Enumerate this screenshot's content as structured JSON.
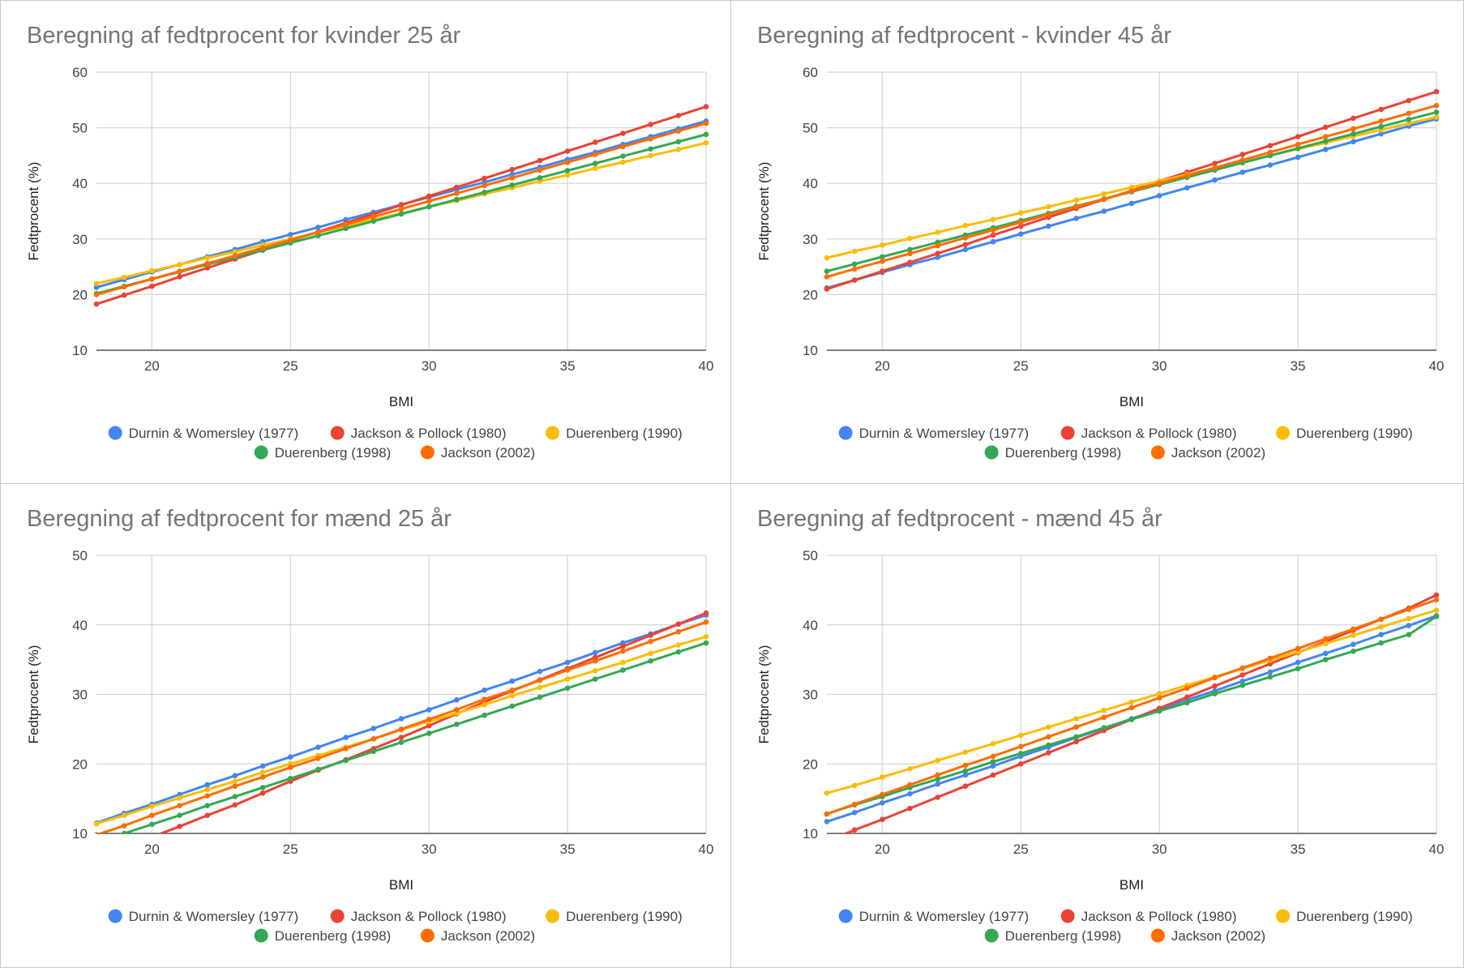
{
  "colors": {
    "durnin": "#4285f4",
    "jacksonPollock": "#ea4335",
    "duerenberg1990": "#fbbc04",
    "duerenberg1998": "#34a853",
    "jackson2002": "#ff6d01"
  },
  "chart_data": [
    {
      "type": "line",
      "title": "Beregning af fedtprocent for kvinder 25 år",
      "xlabel": "BMI",
      "ylabel": "Fedtprocent (%)",
      "xlim": [
        18,
        40
      ],
      "ylim": [
        10,
        60
      ],
      "xticks": [
        20,
        25,
        30,
        35,
        40
      ],
      "yticks": [
        10,
        20,
        30,
        40,
        50,
        60
      ],
      "grid": true,
      "legend_position": "bottom",
      "x": [
        18,
        19,
        20,
        21,
        22,
        23,
        24,
        25,
        26,
        27,
        28,
        29,
        30,
        31,
        32,
        33,
        34,
        35,
        36,
        37,
        38,
        39,
        40
      ],
      "series": [
        {
          "name": "Durnin & Womersley (1977)",
          "color": "#4285f4",
          "values": [
            21.3,
            22.7,
            24.1,
            25.4,
            26.8,
            28.1,
            29.5,
            30.8,
            32.1,
            33.5,
            34.8,
            36.2,
            37.5,
            38.9,
            40.2,
            41.6,
            42.9,
            44.3,
            45.6,
            47.0,
            48.4,
            49.8,
            51.2
          ]
        },
        {
          "name": "Jackson & Pollock (1980)",
          "color": "#ea4335",
          "values": [
            18.3,
            19.9,
            21.5,
            23.2,
            24.8,
            26.4,
            28.0,
            29.7,
            31.3,
            32.9,
            34.5,
            36.1,
            37.7,
            39.3,
            40.9,
            42.5,
            44.1,
            45.8,
            47.4,
            49.0,
            50.6,
            52.2,
            53.8
          ]
        },
        {
          "name": "Duerenberg (1990)",
          "color": "#fbbc04",
          "values": [
            22.0,
            23.1,
            24.3,
            25.4,
            26.6,
            27.7,
            28.9,
            30.0,
            31.2,
            32.3,
            33.5,
            34.6,
            35.8,
            36.9,
            38.1,
            39.2,
            40.4,
            41.5,
            42.7,
            43.8,
            45.0,
            46.1,
            47.3
          ]
        },
        {
          "name": "Duerenberg (1998)",
          "color": "#34a853",
          "values": [
            20.2,
            21.5,
            22.8,
            24.1,
            25.4,
            26.7,
            28.0,
            29.3,
            30.6,
            31.9,
            33.2,
            34.5,
            35.8,
            37.1,
            38.4,
            39.7,
            41.0,
            42.3,
            43.6,
            44.9,
            46.2,
            47.5,
            48.8
          ]
        },
        {
          "name": "Jackson (2002)",
          "color": "#ff6d01",
          "values": [
            20.0,
            21.4,
            22.8,
            24.2,
            25.6,
            27.0,
            28.4,
            29.8,
            31.2,
            32.6,
            34.0,
            35.4,
            36.8,
            38.2,
            39.6,
            41.0,
            42.4,
            43.8,
            45.2,
            46.6,
            48.0,
            49.4,
            50.8
          ]
        }
      ]
    },
    {
      "type": "line",
      "title": "Beregning af fedtprocent - kvinder 45 år",
      "xlabel": "BMI",
      "ylabel": "Fedtprocent (%)",
      "xlim": [
        18,
        40
      ],
      "ylim": [
        10,
        60
      ],
      "xticks": [
        20,
        25,
        30,
        35,
        40
      ],
      "yticks": [
        10,
        20,
        30,
        40,
        50,
        60
      ],
      "grid": true,
      "legend_position": "bottom",
      "x": [
        18,
        19,
        20,
        21,
        22,
        23,
        24,
        25,
        26,
        27,
        28,
        29,
        30,
        31,
        32,
        33,
        34,
        35,
        36,
        37,
        38,
        39,
        40
      ],
      "series": [
        {
          "name": "Durnin & Womersley (1977)",
          "color": "#4285f4",
          "values": [
            21.2,
            22.6,
            24.0,
            25.4,
            26.7,
            28.1,
            29.5,
            30.9,
            32.3,
            33.7,
            35.0,
            36.4,
            37.8,
            39.2,
            40.6,
            42.0,
            43.3,
            44.7,
            46.1,
            47.5,
            48.9,
            50.3,
            51.6
          ]
        },
        {
          "name": "Jackson & Pollock (1980)",
          "color": "#ea4335",
          "values": [
            21.0,
            22.6,
            24.2,
            25.8,
            27.4,
            29.0,
            30.7,
            32.3,
            33.9,
            35.5,
            37.1,
            38.7,
            40.4,
            42.0,
            43.6,
            45.2,
            46.8,
            48.4,
            50.1,
            51.7,
            53.3,
            54.9,
            56.5
          ]
        },
        {
          "name": "Duerenberg (1990)",
          "color": "#fbbc04",
          "values": [
            26.6,
            27.8,
            28.9,
            30.1,
            31.2,
            32.4,
            33.5,
            34.7,
            35.8,
            37.0,
            38.1,
            39.3,
            40.4,
            41.6,
            42.7,
            43.9,
            45.0,
            46.2,
            47.3,
            48.5,
            49.6,
            50.8,
            51.9
          ]
        },
        {
          "name": "Duerenberg (1998)",
          "color": "#34a853",
          "values": [
            24.2,
            25.5,
            26.8,
            28.1,
            29.4,
            30.7,
            32.0,
            33.3,
            34.6,
            35.9,
            37.2,
            38.5,
            39.8,
            41.1,
            42.4,
            43.7,
            45.0,
            46.3,
            47.6,
            48.9,
            50.2,
            51.5,
            52.8
          ]
        },
        {
          "name": "Jackson (2002)",
          "color": "#ff6d01",
          "values": [
            23.2,
            24.6,
            26.0,
            27.4,
            28.8,
            30.2,
            31.6,
            33.0,
            34.4,
            35.8,
            37.2,
            38.6,
            40.0,
            41.4,
            42.8,
            44.2,
            45.6,
            47.0,
            48.4,
            49.8,
            51.2,
            52.6,
            54.0
          ]
        }
      ]
    },
    {
      "type": "line",
      "title": "Beregning af fedtprocent for mænd 25 år",
      "xlabel": "BMI",
      "ylabel": "Fedtprocent (%)",
      "xlim": [
        18,
        40
      ],
      "ylim": [
        10,
        50
      ],
      "xticks": [
        20,
        25,
        30,
        35,
        40
      ],
      "yticks": [
        10,
        20,
        30,
        40,
        50
      ],
      "grid": true,
      "legend_position": "bottom",
      "x": [
        18,
        19,
        20,
        21,
        22,
        23,
        24,
        25,
        26,
        27,
        28,
        29,
        30,
        31,
        32,
        33,
        34,
        35,
        36,
        37,
        38,
        39,
        40
      ],
      "series": [
        {
          "name": "Durnin & Womersley (1977)",
          "color": "#4285f4",
          "values": [
            11.5,
            12.9,
            14.2,
            15.6,
            17.0,
            18.3,
            19.7,
            21.0,
            22.4,
            23.8,
            25.1,
            26.5,
            27.8,
            29.2,
            30.6,
            31.9,
            33.3,
            34.6,
            36.0,
            37.4,
            38.7,
            40.1,
            41.4
          ]
        },
        {
          "name": "Jackson & Pollock (1980)",
          "color": "#ea4335",
          "values": [
            6.5,
            8.0,
            9.5,
            11.0,
            12.6,
            14.1,
            15.8,
            17.5,
            19.1,
            20.6,
            22.2,
            23.8,
            25.5,
            27.2,
            28.9,
            30.5,
            32.1,
            33.7,
            35.3,
            36.9,
            38.5,
            40.1,
            41.7
          ]
        },
        {
          "name": "Duerenberg (1990)",
          "color": "#fbbc04",
          "values": [
            11.4,
            12.6,
            13.9,
            15.1,
            16.3,
            17.5,
            18.8,
            20.0,
            21.2,
            22.4,
            23.6,
            24.9,
            26.1,
            27.3,
            28.5,
            29.8,
            31.0,
            32.2,
            33.4,
            34.6,
            35.9,
            37.1,
            38.3
          ]
        },
        {
          "name": "Duerenberg (1998)",
          "color": "#34a853",
          "values": [
            8.6,
            10.0,
            11.3,
            12.6,
            14.0,
            15.3,
            16.6,
            17.9,
            19.2,
            20.5,
            21.8,
            23.1,
            24.4,
            25.7,
            27.0,
            28.3,
            29.6,
            30.9,
            32.2,
            33.5,
            34.8,
            36.1,
            37.4
          ]
        },
        {
          "name": "Jackson (2002)",
          "color": "#ff6d01",
          "values": [
            9.8,
            11.1,
            12.6,
            14.0,
            15.4,
            16.8,
            18.1,
            19.5,
            20.8,
            22.2,
            23.6,
            25.0,
            26.4,
            27.8,
            29.3,
            30.6,
            32.0,
            33.5,
            34.8,
            36.2,
            37.6,
            39.0,
            40.4
          ]
        }
      ]
    },
    {
      "type": "line",
      "title": "Beregning af fedtprocent - mænd 45 år",
      "xlabel": "BMI",
      "ylabel": "Fedtprocent (%)",
      "xlim": [
        18,
        40
      ],
      "ylim": [
        10,
        50
      ],
      "xticks": [
        20,
        25,
        30,
        35,
        40
      ],
      "yticks": [
        10,
        20,
        30,
        40,
        50
      ],
      "grid": true,
      "legend_position": "bottom",
      "x": [
        18,
        19,
        20,
        21,
        22,
        23,
        24,
        25,
        26,
        27,
        28,
        29,
        30,
        31,
        32,
        33,
        34,
        35,
        36,
        37,
        38,
        39,
        40
      ],
      "series": [
        {
          "name": "Durnin & Womersley (1977)",
          "color": "#4285f4",
          "values": [
            11.7,
            13.0,
            14.4,
            15.7,
            17.1,
            18.4,
            19.7,
            21.1,
            22.4,
            23.8,
            25.1,
            26.5,
            27.8,
            29.2,
            30.5,
            31.9,
            33.2,
            34.6,
            35.9,
            37.2,
            38.6,
            39.9,
            41.3
          ]
        },
        {
          "name": "Jackson & Pollock (1980)",
          "color": "#ea4335",
          "values": [
            8.9,
            10.5,
            12.0,
            13.6,
            15.2,
            16.8,
            18.4,
            20.0,
            21.6,
            23.2,
            24.8,
            26.4,
            28.0,
            29.6,
            31.2,
            32.8,
            34.4,
            36.0,
            37.6,
            39.2,
            40.8,
            42.4,
            44.3
          ]
        },
        {
          "name": "Duerenberg (1990)",
          "color": "#fbbc04",
          "values": [
            15.8,
            16.9,
            18.1,
            19.3,
            20.5,
            21.7,
            22.9,
            24.1,
            25.3,
            26.5,
            27.7,
            28.9,
            30.1,
            31.3,
            32.5,
            33.7,
            34.9,
            36.1,
            37.3,
            38.5,
            39.7,
            40.9,
            42.1
          ]
        },
        {
          "name": "Duerenberg (1998)",
          "color": "#34a853",
          "values": [
            12.8,
            14.1,
            15.3,
            16.6,
            17.8,
            19.0,
            20.3,
            21.5,
            22.7,
            23.9,
            25.2,
            26.4,
            27.6,
            28.8,
            30.1,
            31.3,
            32.5,
            33.7,
            35.0,
            36.2,
            37.4,
            38.6,
            41.2
          ]
        },
        {
          "name": "Jackson (2002)",
          "color": "#ff6d01",
          "values": [
            12.8,
            14.2,
            15.6,
            17.0,
            18.4,
            19.8,
            21.1,
            22.5,
            23.9,
            25.3,
            26.7,
            28.1,
            29.5,
            30.9,
            32.4,
            33.8,
            35.2,
            36.6,
            38.0,
            39.4,
            40.8,
            42.2,
            43.6
          ]
        }
      ]
    }
  ]
}
